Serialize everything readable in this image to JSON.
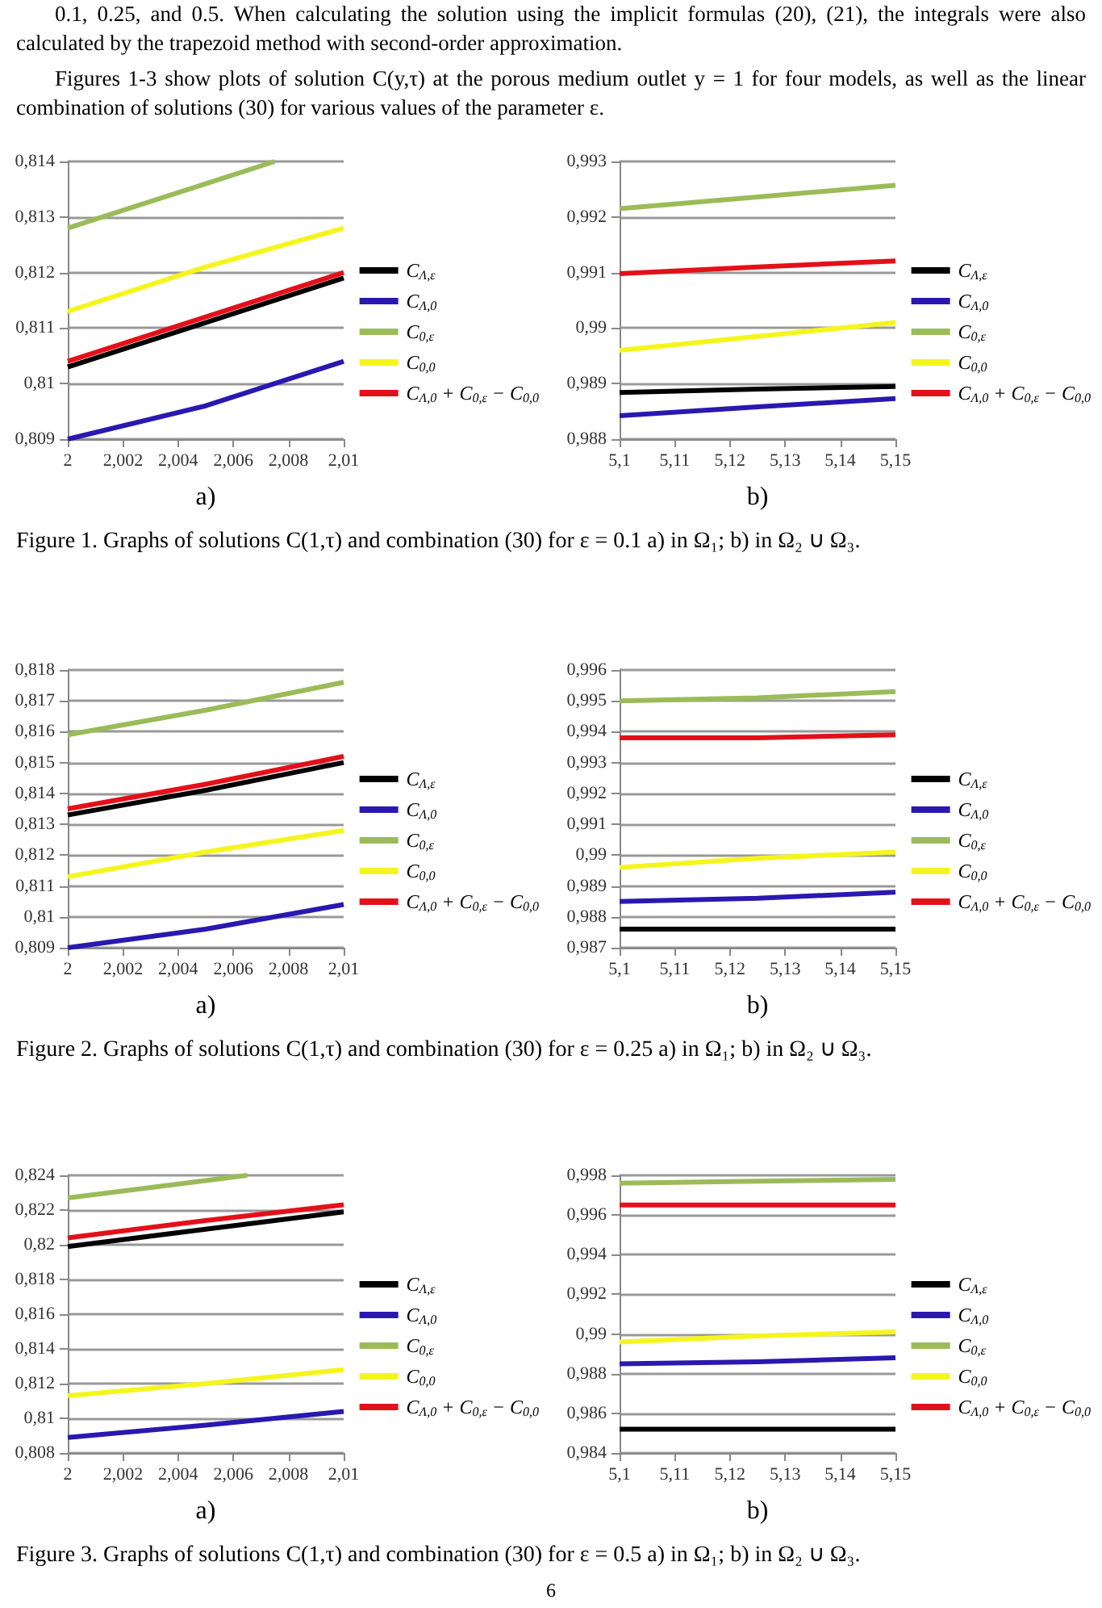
{
  "chart_data": [
    {
      "type": "line",
      "xlabel": "a)",
      "legend": "right",
      "grid": "y",
      "marker": "none",
      "annotations": [
        "0.1, 0.25, and 0.5. When calculating the solution using the implicit formulas (20), (21), the integrals were also calculated by the trapezoid method with second-order approximation.",
        "Figures 1-3 show plots of solution C(y,τ) at the porous medium outlet y = 1 for four models, as well as the linear combination of solutions (30) for various values of the parameter ε."
      ],
      "x": [
        2,
        2.005,
        2.01
      ],
      "xlim": [
        2,
        2.01
      ],
      "xticks": [
        {
          "value": 2,
          "label": "2"
        },
        {
          "value": 2.002,
          "label": "2,002"
        },
        {
          "value": 2.004,
          "label": "2,004"
        },
        {
          "value": 2.006,
          "label": "2,006"
        },
        {
          "value": 2.008,
          "label": "2,008"
        },
        {
          "value": 2.01,
          "label": "2,01"
        }
      ],
      "ylim": [
        0.809,
        0.814
      ],
      "yticks": [
        {
          "value": 0.809,
          "label": "0,809"
        },
        {
          "value": 0.81,
          "label": "0,81"
        },
        {
          "value": 0.811,
          "label": "0,811"
        },
        {
          "value": 0.812,
          "label": "0,812"
        },
        {
          "value": 0.813,
          "label": "0,813"
        },
        {
          "value": 0.814,
          "label": "0,814"
        }
      ],
      "series": [
        {
          "name": "C$_{Λ,ε}$",
          "color": "#000000",
          "values": [
            0.8103,
            0.8111,
            0.8119
          ]
        },
        {
          "name": "C$_{Λ,0}$",
          "color": "#2a18b0",
          "values": [
            0.809,
            0.8096,
            0.8104
          ]
        },
        {
          "name": "C$_{0,ε}$",
          "color": "#9bbb59",
          "x": [
            2,
            2.005,
            2.0075
          ],
          "values": [
            0.8128,
            0.8136,
            0.814
          ]
        },
        {
          "name": "C$_{0,0}$",
          "color": "#f5f51e",
          "values": [
            0.8113,
            0.8121,
            0.8128
          ]
        },
        {
          "name": "C$_{Λ,0}$ + C$_{0,ε}$ − C$_{0,0}$",
          "color": "#e3101a",
          "values": [
            0.8104,
            0.8112,
            0.812
          ]
        }
      ]
    },
    {
      "type": "line",
      "xlabel": "b)",
      "legend": "right",
      "grid": "y",
      "marker": "none",
      "annotations": [
        "Figure 1. Graphs of solutions C(1,τ) and combination (30) for ε = 0.1 a) in Ω₁; b) in Ω₂ ∪ Ω₃."
      ],
      "x": [
        5.1,
        5.125,
        5.15
      ],
      "xlim": [
        5.1,
        5.15
      ],
      "xticks": [
        {
          "value": 5.1,
          "label": "5,1"
        },
        {
          "value": 5.11,
          "label": "5,11"
        },
        {
          "value": 5.12,
          "label": "5,12"
        },
        {
          "value": 5.13,
          "label": "5,13"
        },
        {
          "value": 5.14,
          "label": "5,14"
        },
        {
          "value": 5.15,
          "label": "5,15"
        }
      ],
      "ylim": [
        0.988,
        0.993
      ],
      "yticks": [
        {
          "value": 0.988,
          "label": "0,988"
        },
        {
          "value": 0.989,
          "label": "0,989"
        },
        {
          "value": 0.99,
          "label": "0,99"
        },
        {
          "value": 0.991,
          "label": "0,991"
        },
        {
          "value": 0.992,
          "label": "0,992"
        },
        {
          "value": 0.993,
          "label": "0,993"
        }
      ],
      "series": [
        {
          "name": "C$_{Λ,ε}$",
          "color": "#000000",
          "values": [
            0.98884,
            0.9889,
            0.98895
          ]
        },
        {
          "name": "C$_{Λ,0}$",
          "color": "#2a18b0",
          "values": [
            0.98842,
            0.98858,
            0.98873
          ]
        },
        {
          "name": "C$_{0,ε}$",
          "color": "#9bbb59",
          "values": [
            0.99215,
            0.99236,
            0.99257
          ]
        },
        {
          "name": "C$_{0,0}$",
          "color": "#f5f51e",
          "values": [
            0.9896,
            0.98985,
            0.9901
          ]
        },
        {
          "name": "C$_{Λ,0}$ + C$_{0,ε}$ − C$_{0,0}$",
          "color": "#e3101a",
          "values": [
            0.99098,
            0.9911,
            0.99121
          ]
        }
      ]
    },
    {
      "type": "line",
      "xlabel": "a)",
      "legend": "right",
      "grid": "y",
      "marker": "none",
      "x": [
        2,
        2.005,
        2.01
      ],
      "xlim": [
        2,
        2.01
      ],
      "xticks": [
        {
          "value": 2,
          "label": "2"
        },
        {
          "value": 2.002,
          "label": "2,002"
        },
        {
          "value": 2.004,
          "label": "2,004"
        },
        {
          "value": 2.006,
          "label": "2,006"
        },
        {
          "value": 2.008,
          "label": "2,008"
        },
        {
          "value": 2.01,
          "label": "2,01"
        }
      ],
      "ylim": [
        0.809,
        0.818
      ],
      "yticks": [
        {
          "value": 0.809,
          "label": "0,809"
        },
        {
          "value": 0.81,
          "label": "0,81"
        },
        {
          "value": 0.811,
          "label": "0,811"
        },
        {
          "value": 0.812,
          "label": "0,812"
        },
        {
          "value": 0.813,
          "label": "0,813"
        },
        {
          "value": 0.814,
          "label": "0,814"
        },
        {
          "value": 0.815,
          "label": "0,815"
        },
        {
          "value": 0.816,
          "label": "0,816"
        },
        {
          "value": 0.817,
          "label": "0,817"
        },
        {
          "value": 0.818,
          "label": "0,818"
        }
      ],
      "series": [
        {
          "name": "C$_{Λ,ε}$",
          "color": "#000000",
          "values": [
            0.8133,
            0.8141,
            0.815
          ]
        },
        {
          "name": "C$_{Λ,0}$",
          "color": "#2a18b0",
          "values": [
            0.809,
            0.8096,
            0.8104
          ]
        },
        {
          "name": "C$_{0,ε}$",
          "color": "#9bbb59",
          "values": [
            0.8159,
            0.8167,
            0.8176
          ]
        },
        {
          "name": "C$_{0,0}$",
          "color": "#f5f51e",
          "values": [
            0.8113,
            0.8121,
            0.8128
          ]
        },
        {
          "name": "C$_{Λ,0}$ + C$_{0,ε}$ − C$_{0,0}$",
          "color": "#e3101a",
          "values": [
            0.8135,
            0.8143,
            0.8152
          ]
        }
      ]
    },
    {
      "type": "line",
      "xlabel": "b)",
      "legend": "right",
      "grid": "y",
      "marker": "none",
      "annotations": [
        "Figure 2. Graphs of solutions C(1,τ) and combination (30) for ε = 0.25 a) in Ω₁; b) in Ω₂ ∪ Ω₃."
      ],
      "x": [
        5.1,
        5.125,
        5.15
      ],
      "xlim": [
        5.1,
        5.15
      ],
      "xticks": [
        {
          "value": 5.1,
          "label": "5,1"
        },
        {
          "value": 5.11,
          "label": "5,11"
        },
        {
          "value": 5.12,
          "label": "5,12"
        },
        {
          "value": 5.13,
          "label": "5,13"
        },
        {
          "value": 5.14,
          "label": "5,14"
        },
        {
          "value": 5.15,
          "label": "5,15"
        }
      ],
      "ylim": [
        0.987,
        0.996
      ],
      "yticks": [
        {
          "value": 0.987,
          "label": "0,987"
        },
        {
          "value": 0.988,
          "label": "0,988"
        },
        {
          "value": 0.989,
          "label": "0,989"
        },
        {
          "value": 0.99,
          "label": "0,99"
        },
        {
          "value": 0.991,
          "label": "0,991"
        },
        {
          "value": 0.992,
          "label": "0,992"
        },
        {
          "value": 0.993,
          "label": "0,993"
        },
        {
          "value": 0.994,
          "label": "0,994"
        },
        {
          "value": 0.995,
          "label": "0,995"
        },
        {
          "value": 0.996,
          "label": "0,996"
        }
      ],
      "series": [
        {
          "name": "C$_{Λ,ε}$",
          "color": "#000000",
          "values": [
            0.9876,
            0.9876,
            0.9876
          ]
        },
        {
          "name": "C$_{Λ,0}$",
          "color": "#2a18b0",
          "values": [
            0.9885,
            0.9886,
            0.9888
          ]
        },
        {
          "name": "C$_{0,ε}$",
          "color": "#9bbb59",
          "values": [
            0.995,
            0.9951,
            0.9953
          ]
        },
        {
          "name": "C$_{0,0}$",
          "color": "#f5f51e",
          "values": [
            0.9896,
            0.9899,
            0.9901
          ]
        },
        {
          "name": "C$_{Λ,0}$ + C$_{0,ε}$ − C$_{0,0}$",
          "color": "#e3101a",
          "values": [
            0.9938,
            0.9938,
            0.9939
          ]
        }
      ]
    },
    {
      "type": "line",
      "xlabel": "a)",
      "legend": "right",
      "grid": "y",
      "marker": "none",
      "x": [
        2,
        2.005,
        2.01
      ],
      "xlim": [
        2,
        2.01
      ],
      "xticks": [
        {
          "value": 2,
          "label": "2"
        },
        {
          "value": 2.002,
          "label": "2,002"
        },
        {
          "value": 2.004,
          "label": "2,004"
        },
        {
          "value": 2.006,
          "label": "2,006"
        },
        {
          "value": 2.008,
          "label": "2,008"
        },
        {
          "value": 2.01,
          "label": "2,01"
        }
      ],
      "ylim": [
        0.808,
        0.824
      ],
      "yticks": [
        {
          "value": 0.808,
          "label": "0,808"
        },
        {
          "value": 0.81,
          "label": "0,81"
        },
        {
          "value": 0.812,
          "label": "0,812"
        },
        {
          "value": 0.814,
          "label": "0,814"
        },
        {
          "value": 0.816,
          "label": "0,816"
        },
        {
          "value": 0.818,
          "label": "0,818"
        },
        {
          "value": 0.82,
          "label": "0,82"
        },
        {
          "value": 0.822,
          "label": "0,822"
        },
        {
          "value": 0.824,
          "label": "0,824"
        }
      ],
      "series": [
        {
          "name": "C$_{Λ,ε}$",
          "color": "#000000",
          "values": [
            0.8199,
            0.8209,
            0.8219
          ]
        },
        {
          "name": "C$_{Λ,0}$",
          "color": "#2a18b0",
          "values": [
            0.8089,
            0.8096,
            0.8104
          ]
        },
        {
          "name": "C$_{0,ε}$",
          "color": "#9bbb59",
          "x": [
            2,
            2.005,
            2.0065
          ],
          "values": [
            0.8227,
            0.8237,
            0.824
          ]
        },
        {
          "name": "C$_{0,0}$",
          "color": "#f5f51e",
          "values": [
            0.8113,
            0.812,
            0.8128
          ]
        },
        {
          "name": "C$_{Λ,0}$ + C$_{0,ε}$ − C$_{0,0}$",
          "color": "#e3101a",
          "values": [
            0.8204,
            0.8214,
            0.8223
          ]
        }
      ]
    },
    {
      "type": "line",
      "xlabel": "b)",
      "legend": "right",
      "grid": "y",
      "marker": "none",
      "annotations": [
        "Figure 3. Graphs of solutions C(1,τ) and combination (30) for ε = 0.5 a) in Ω₁; b) in Ω₂ ∪ Ω₃.",
        "6"
      ],
      "x": [
        5.1,
        5.125,
        5.15
      ],
      "xlim": [
        5.1,
        5.15
      ],
      "xticks": [
        {
          "value": 5.1,
          "label": "5,1"
        },
        {
          "value": 5.11,
          "label": "5,11"
        },
        {
          "value": 5.12,
          "label": "5,12"
        },
        {
          "value": 5.13,
          "label": "5,13"
        },
        {
          "value": 5.14,
          "label": "5,14"
        },
        {
          "value": 5.15,
          "label": "5,15"
        }
      ],
      "ylim": [
        0.984,
        0.998
      ],
      "yticks": [
        {
          "value": 0.984,
          "label": "0,984"
        },
        {
          "value": 0.986,
          "label": "0,986"
        },
        {
          "value": 0.988,
          "label": "0,988"
        },
        {
          "value": 0.99,
          "label": "0,99"
        },
        {
          "value": 0.992,
          "label": "0,992"
        },
        {
          "value": 0.994,
          "label": "0,994"
        },
        {
          "value": 0.996,
          "label": "0,996"
        },
        {
          "value": 0.998,
          "label": "0,998"
        }
      ],
      "series": [
        {
          "name": "C$_{Λ,ε}$",
          "color": "#000000",
          "values": [
            0.9852,
            0.9852,
            0.9852
          ]
        },
        {
          "name": "C$_{Λ,0}$",
          "color": "#2a18b0",
          "values": [
            0.9885,
            0.9886,
            0.9888
          ]
        },
        {
          "name": "C$_{0,ε}$",
          "color": "#9bbb59",
          "values": [
            0.9976,
            0.9977,
            0.9978
          ]
        },
        {
          "name": "C$_{0,0}$",
          "color": "#f5f51e",
          "values": [
            0.9896,
            0.9899,
            0.9901
          ]
        },
        {
          "name": "C$_{Λ,0}$ + C$_{0,ε}$ − C$_{0,0}$",
          "color": "#e3101a",
          "values": [
            0.9965,
            0.9965,
            0.9965
          ]
        }
      ]
    }
  ]
}
